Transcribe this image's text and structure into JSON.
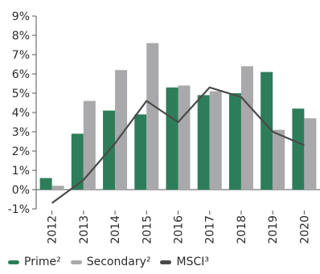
{
  "chart_data": {
    "type": "bar",
    "title": "",
    "xlabel": "",
    "ylabel": "",
    "categories": [
      "2012",
      "2013",
      "2014",
      "2015",
      "2016",
      "2017",
      "2018",
      "2019",
      "2020"
    ],
    "ylim": [
      -1,
      9
    ],
    "yticks": [
      "-1%",
      "0%",
      "1%",
      "2%",
      "3%",
      "4%",
      "5%",
      "6%",
      "7%",
      "8%",
      "9%"
    ],
    "grid": false,
    "legend_position": "bottom",
    "series": [
      {
        "name": "Prime²",
        "kind": "bar",
        "color": "#2e7d5a",
        "values": [
          0.6,
          2.9,
          4.1,
          3.9,
          5.3,
          4.9,
          5.0,
          6.1,
          4.2
        ]
      },
      {
        "name": "Secondary²",
        "kind": "bar",
        "color": "#a9a9ab",
        "values": [
          0.2,
          4.6,
          6.2,
          7.6,
          5.4,
          5.1,
          6.4,
          3.1,
          3.7
        ]
      },
      {
        "name": "MSCI³",
        "kind": "line",
        "color": "#4a4a4a",
        "values": [
          -0.7,
          0.5,
          2.4,
          4.6,
          3.5,
          5.3,
          4.8,
          3.0,
          2.3
        ]
      }
    ]
  }
}
